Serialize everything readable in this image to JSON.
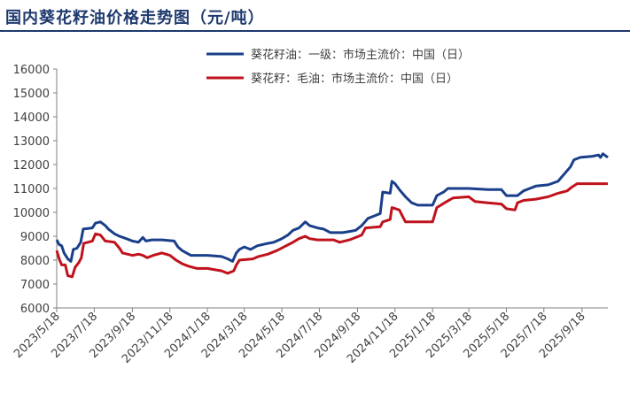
{
  "title": "国内葵花籽油价格走势图（元/吨）",
  "colors": {
    "series1": "#1a3f8a",
    "series2": "#c0121c",
    "title": "#1f3a6e",
    "axis": "#7f7f7f"
  },
  "chart_data": {
    "type": "line",
    "title": "国内葵花籽油价格走势图（元/吨）",
    "xlabel": "",
    "ylabel": "",
    "ylim": [
      6000,
      16000
    ],
    "y_ticks": [
      6000,
      7000,
      8000,
      9000,
      10000,
      11000,
      12000,
      13000,
      14000,
      15000,
      16000
    ],
    "x_range": [
      "2023-05-18",
      "2025-10-30"
    ],
    "x_ticks": [
      "2023/5/18",
      "2023/7/18",
      "2023/9/18",
      "2023/11/18",
      "2024/1/18",
      "2024/3/18",
      "2024/5/18",
      "2024/7/18",
      "2024/9/18",
      "2024/11/18",
      "2025/1/18",
      "2025/3/18",
      "2025/5/18",
      "2025/7/18",
      "2025/9/18"
    ],
    "grid": false,
    "legend_position": "top-right",
    "series": [
      {
        "name": "葵花籽油：一级：市场主流价：中国（日）",
        "color": "#1a3f8a",
        "points": [
          [
            "2023-05-18",
            8850
          ],
          [
            "2023-05-22",
            8650
          ],
          [
            "2023-05-26",
            8600
          ],
          [
            "2023-05-30",
            8300
          ],
          [
            "2023-06-05",
            8050
          ],
          [
            "2023-06-10",
            7950
          ],
          [
            "2023-06-14",
            8450
          ],
          [
            "2023-06-20",
            8500
          ],
          [
            "2023-06-26",
            8750
          ],
          [
            "2023-06-30",
            9300
          ],
          [
            "2023-07-15",
            9350
          ],
          [
            "2023-07-20",
            9550
          ],
          [
            "2023-07-28",
            9600
          ],
          [
            "2023-08-05",
            9450
          ],
          [
            "2023-08-10",
            9300
          ],
          [
            "2023-08-20",
            9100
          ],
          [
            "2023-08-28",
            9000
          ],
          [
            "2023-09-08",
            8900
          ],
          [
            "2023-09-18",
            8800
          ],
          [
            "2023-09-28",
            8750
          ],
          [
            "2023-10-05",
            8950
          ],
          [
            "2023-10-10",
            8800
          ],
          [
            "2023-10-20",
            8850
          ],
          [
            "2023-11-05",
            8850
          ],
          [
            "2023-11-25",
            8800
          ],
          [
            "2023-12-01",
            8550
          ],
          [
            "2023-12-08",
            8400
          ],
          [
            "2023-12-15",
            8300
          ],
          [
            "2023-12-22",
            8200
          ],
          [
            "2024-01-18",
            8200
          ],
          [
            "2024-02-10",
            8150
          ],
          [
            "2024-02-20",
            8050
          ],
          [
            "2024-02-28",
            7950
          ],
          [
            "2024-03-05",
            8300
          ],
          [
            "2024-03-10",
            8450
          ],
          [
            "2024-03-18",
            8550
          ],
          [
            "2024-03-28",
            8450
          ],
          [
            "2024-04-08",
            8600
          ],
          [
            "2024-04-25",
            8700
          ],
          [
            "2024-05-05",
            8750
          ],
          [
            "2024-05-18",
            8900
          ],
          [
            "2024-05-28",
            9050
          ],
          [
            "2024-06-05",
            9250
          ],
          [
            "2024-06-15",
            9350
          ],
          [
            "2024-06-25",
            9600
          ],
          [
            "2024-07-02",
            9450
          ],
          [
            "2024-07-15",
            9350
          ],
          [
            "2024-07-25",
            9300
          ],
          [
            "2024-08-05",
            9150
          ],
          [
            "2024-08-25",
            9150
          ],
          [
            "2024-09-05",
            9200
          ],
          [
            "2024-09-15",
            9250
          ],
          [
            "2024-09-25",
            9450
          ],
          [
            "2024-10-05",
            9750
          ],
          [
            "2024-10-15",
            9850
          ],
          [
            "2024-10-25",
            9950
          ],
          [
            "2024-10-29",
            10850
          ],
          [
            "2024-11-10",
            10800
          ],
          [
            "2024-11-13",
            11300
          ],
          [
            "2024-11-18",
            11200
          ],
          [
            "2024-11-25",
            10950
          ],
          [
            "2024-12-05",
            10650
          ],
          [
            "2024-12-15",
            10400
          ],
          [
            "2024-12-25",
            10300
          ],
          [
            "2025-01-18",
            10300
          ],
          [
            "2025-01-25",
            10700
          ],
          [
            "2025-02-05",
            10850
          ],
          [
            "2025-02-12",
            11000
          ],
          [
            "2025-03-18",
            11000
          ],
          [
            "2025-04-18",
            10950
          ],
          [
            "2025-05-10",
            10950
          ],
          [
            "2025-05-18",
            10700
          ],
          [
            "2025-06-05",
            10700
          ],
          [
            "2025-06-15",
            10900
          ],
          [
            "2025-06-25",
            11000
          ],
          [
            "2025-07-05",
            11100
          ],
          [
            "2025-07-25",
            11150
          ],
          [
            "2025-08-10",
            11300
          ],
          [
            "2025-08-20",
            11600
          ],
          [
            "2025-08-30",
            11900
          ],
          [
            "2025-09-05",
            12200
          ],
          [
            "2025-09-15",
            12300
          ],
          [
            "2025-10-05",
            12350
          ],
          [
            "2025-10-15",
            12400
          ],
          [
            "2025-10-18",
            12300
          ],
          [
            "2025-10-22",
            12450
          ],
          [
            "2025-10-30",
            12300
          ]
        ]
      },
      {
        "name": "葵花籽：毛油：市场主流价：中国（日）",
        "color": "#c0121c",
        "points": [
          [
            "2023-05-18",
            8400
          ],
          [
            "2023-05-22",
            8050
          ],
          [
            "2023-05-26",
            7800
          ],
          [
            "2023-06-01",
            7800
          ],
          [
            "2023-06-05",
            7350
          ],
          [
            "2023-06-12",
            7300
          ],
          [
            "2023-06-17",
            7700
          ],
          [
            "2023-06-23",
            7900
          ],
          [
            "2023-06-27",
            8100
          ],
          [
            "2023-07-01",
            8700
          ],
          [
            "2023-07-15",
            8800
          ],
          [
            "2023-07-20",
            9100
          ],
          [
            "2023-07-28",
            9050
          ],
          [
            "2023-08-05",
            8800
          ],
          [
            "2023-08-20",
            8750
          ],
          [
            "2023-08-28",
            8500
          ],
          [
            "2023-09-02",
            8300
          ],
          [
            "2023-09-18",
            8200
          ],
          [
            "2023-09-28",
            8250
          ],
          [
            "2023-10-05",
            8200
          ],
          [
            "2023-10-12",
            8100
          ],
          [
            "2023-10-22",
            8200
          ],
          [
            "2023-11-05",
            8300
          ],
          [
            "2023-11-18",
            8200
          ],
          [
            "2023-11-28",
            8000
          ],
          [
            "2023-12-08",
            7850
          ],
          [
            "2023-12-18",
            7750
          ],
          [
            "2024-01-01",
            7650
          ],
          [
            "2024-01-18",
            7650
          ],
          [
            "2024-02-10",
            7550
          ],
          [
            "2024-02-20",
            7450
          ],
          [
            "2024-03-01",
            7550
          ],
          [
            "2024-03-05",
            7800
          ],
          [
            "2024-03-10",
            8000
          ],
          [
            "2024-04-01",
            8050
          ],
          [
            "2024-04-10",
            8150
          ],
          [
            "2024-04-25",
            8250
          ],
          [
            "2024-05-10",
            8400
          ],
          [
            "2024-05-25",
            8600
          ],
          [
            "2024-06-05",
            8750
          ],
          [
            "2024-06-15",
            8900
          ],
          [
            "2024-06-25",
            9000
          ],
          [
            "2024-07-02",
            8900
          ],
          [
            "2024-07-15",
            8850
          ],
          [
            "2024-08-10",
            8850
          ],
          [
            "2024-08-20",
            8750
          ],
          [
            "2024-09-05",
            8850
          ],
          [
            "2024-09-15",
            8950
          ],
          [
            "2024-09-25",
            9050
          ],
          [
            "2024-10-01",
            9350
          ],
          [
            "2024-10-25",
            9400
          ],
          [
            "2024-10-29",
            9600
          ],
          [
            "2024-11-10",
            9700
          ],
          [
            "2024-11-13",
            10200
          ],
          [
            "2024-11-25",
            10100
          ],
          [
            "2024-12-01",
            9800
          ],
          [
            "2024-12-05",
            9600
          ],
          [
            "2025-01-18",
            9600
          ],
          [
            "2025-01-25",
            10200
          ],
          [
            "2025-02-10",
            10450
          ],
          [
            "2025-02-20",
            10600
          ],
          [
            "2025-03-18",
            10650
          ],
          [
            "2025-03-28",
            10450
          ],
          [
            "2025-04-18",
            10400
          ],
          [
            "2025-05-10",
            10350
          ],
          [
            "2025-05-18",
            10150
          ],
          [
            "2025-06-01",
            10100
          ],
          [
            "2025-06-05",
            10400
          ],
          [
            "2025-06-15",
            10500
          ],
          [
            "2025-07-05",
            10550
          ],
          [
            "2025-07-25",
            10650
          ],
          [
            "2025-08-10",
            10800
          ],
          [
            "2025-08-25",
            10900
          ],
          [
            "2025-09-01",
            11050
          ],
          [
            "2025-09-10",
            11200
          ],
          [
            "2025-10-30",
            11200
          ]
        ]
      }
    ]
  }
}
